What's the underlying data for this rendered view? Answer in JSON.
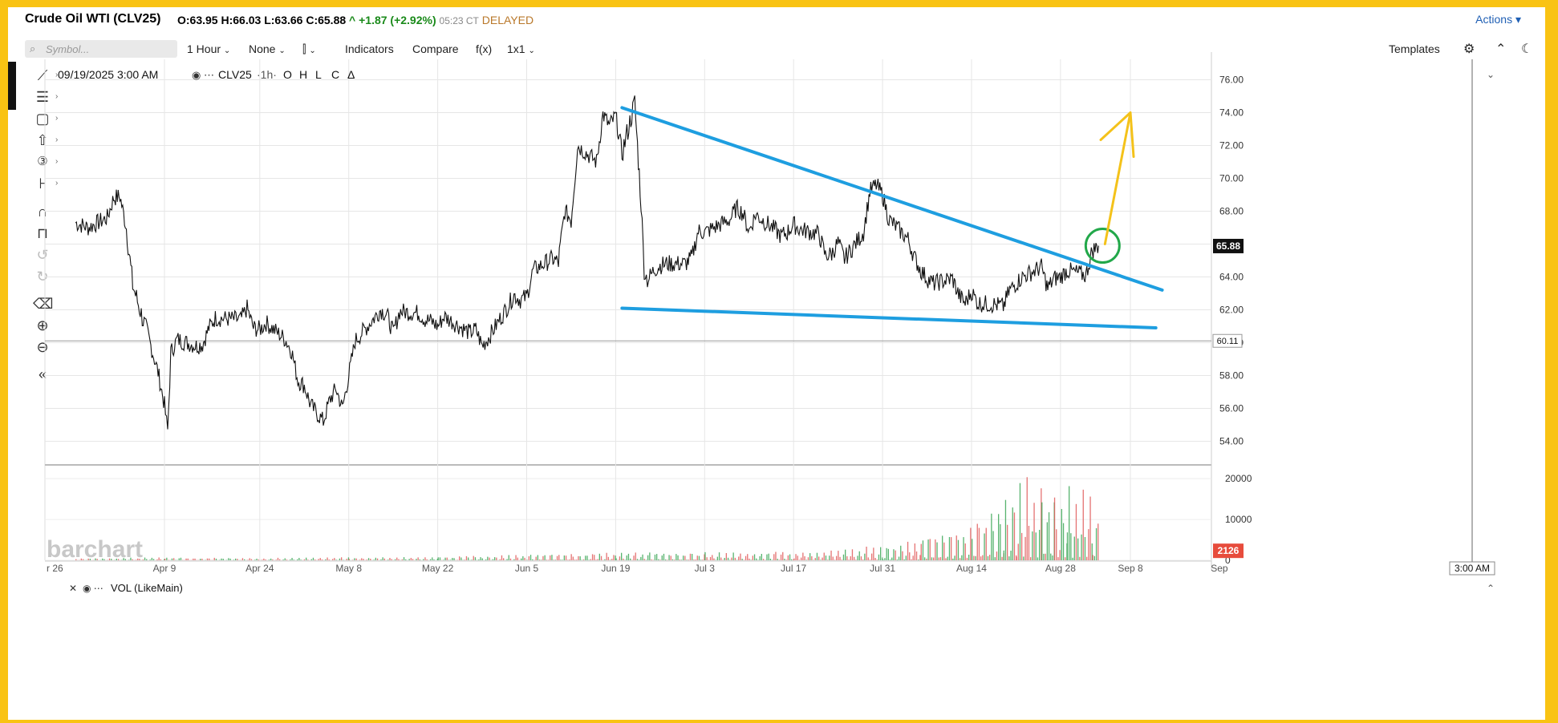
{
  "header": {
    "symbol_title": "Crude Oil WTI (CLV25)",
    "open": "O:63.95",
    "high": "H:66.03",
    "low": "L:63.66",
    "close": "C:65.88",
    "arrow": "^",
    "change": "+1.87 (+2.92%)",
    "time": "05:23 CT",
    "delayed": "DELAYED",
    "actions": "Actions"
  },
  "toolbar": {
    "search_placeholder": "Symbol...",
    "interval": "1 Hour",
    "aggregation": "None",
    "indicators": "Indicators",
    "compare": "Compare",
    "fx": "f(x)",
    "layout": "1x1",
    "templates": "Templates"
  },
  "legend": {
    "date": "09/19/2025 3:00 AM",
    "symbol": "CLV25",
    "period": "·1h·",
    "o": "O",
    "h": "H",
    "l": "L",
    "c": "C",
    "delta": "Δ",
    "volume": "VOL (LikeMain)"
  },
  "watermark": "barchart",
  "colors": {
    "trendline": "#1e9ee0",
    "arrow": "#f4c21a",
    "circle": "#22a84a",
    "price": "#111111",
    "vol_up": "#3aa655",
    "vol_down": "#e05a5a",
    "vol_badge": "#e74c3c"
  },
  "chart_data": [
    {
      "type": "line",
      "title": "",
      "x_ticks": [
        "r 26",
        "Apr 9",
        "Apr 24",
        "May 8",
        "May 22",
        "Jun 5",
        "Jun 19",
        "Jul 3",
        "Jul 17",
        "Jul 31",
        "Aug 14",
        "Aug 28",
        "Sep 8",
        "Sep"
      ],
      "y_ticks": [
        "76.00",
        "74.00",
        "72.00",
        "70.00",
        "68.00",
        "66.00",
        "64.00",
        "62.00",
        "60.00",
        "58.00",
        "56.00",
        "54.00"
      ],
      "ylim": [
        53.0,
        77.0
      ],
      "last_price": "65.88",
      "ref_price": "60.11",
      "crosshair_time": "3:00 AM",
      "series": [
        {
          "values": [
            [
              "2025-03-26",
              67.3
            ],
            [
              "2025-03-28",
              67.0
            ],
            [
              "2025-03-31",
              67.6
            ],
            [
              "2025-04-01",
              68.8
            ],
            [
              "2025-04-02",
              68.9
            ],
            [
              "2025-04-03",
              67.0
            ],
            [
              "2025-04-04",
              63.5
            ],
            [
              "2025-04-07",
              59.6
            ],
            [
              "2025-04-08",
              58.2
            ],
            [
              "2025-04-09",
              56.2
            ],
            [
              "2025-04-09T12",
              54.6
            ],
            [
              "2025-04-10",
              59.4
            ],
            [
              "2025-04-11",
              60.2
            ],
            [
              "2025-04-14",
              59.8
            ],
            [
              "2025-04-15",
              59.9
            ],
            [
              "2025-04-16",
              60.9
            ],
            [
              "2025-04-17",
              61.5
            ],
            [
              "2025-04-21",
              61.4
            ],
            [
              "2025-04-22",
              62.1
            ],
            [
              "2025-04-23",
              60.9
            ],
            [
              "2025-04-24",
              60.8
            ],
            [
              "2025-04-25",
              61.2
            ],
            [
              "2025-04-28",
              60.2
            ],
            [
              "2025-04-29",
              59.5
            ],
            [
              "2025-04-30",
              57.7
            ],
            [
              "2025-05-01",
              57.4
            ],
            [
              "2025-05-02",
              56.2
            ],
            [
              "2025-05-04",
              55.2
            ],
            [
              "2025-05-05",
              56.5
            ],
            [
              "2025-05-06",
              57.2
            ],
            [
              "2025-05-07",
              56.0
            ],
            [
              "2025-05-08",
              58.0
            ],
            [
              "2025-05-09",
              60.1
            ],
            [
              "2025-05-12",
              61.5
            ],
            [
              "2025-05-13",
              62.0
            ],
            [
              "2025-05-14",
              61.7
            ],
            [
              "2025-05-15",
              60.6
            ],
            [
              "2025-05-16",
              61.9
            ],
            [
              "2025-05-19",
              61.8
            ],
            [
              "2025-05-20",
              61.4
            ],
            [
              "2025-05-21",
              61.3
            ],
            [
              "2025-05-22",
              61.0
            ],
            [
              "2025-05-23",
              61.6
            ],
            [
              "2025-05-27",
              60.6
            ],
            [
              "2025-05-28",
              60.8
            ],
            [
              "2025-05-29",
              59.8
            ],
            [
              "2025-05-30",
              60.3
            ],
            [
              "2025-06-02",
              62.2
            ],
            [
              "2025-06-03",
              62.9
            ],
            [
              "2025-06-04",
              62.6
            ],
            [
              "2025-06-05",
              62.8
            ],
            [
              "2025-06-06",
              64.4
            ],
            [
              "2025-06-09",
              65.1
            ],
            [
              "2025-06-10",
              64.9
            ],
            [
              "2025-06-11",
              68.0
            ],
            [
              "2025-06-12",
              67.5
            ],
            [
              "2025-06-13",
              72.0
            ],
            [
              "2025-06-16",
              71.0
            ],
            [
              "2025-06-17",
              73.9
            ],
            [
              "2025-06-18",
              73.2
            ],
            [
              "2025-06-19",
              73.8
            ],
            [
              "2025-06-20",
              71.5
            ],
            [
              "2025-06-22",
              74.6
            ],
            [
              "2025-06-23",
              68.5
            ],
            [
              "2025-06-23T12",
              64.4
            ],
            [
              "2025-06-24",
              63.8
            ],
            [
              "2025-06-25",
              64.4
            ],
            [
              "2025-06-26",
              64.7
            ],
            [
              "2025-06-27",
              64.8
            ],
            [
              "2025-06-30",
              64.8
            ],
            [
              "2025-07-01",
              65.2
            ],
            [
              "2025-07-02",
              66.8
            ],
            [
              "2025-07-03",
              66.7
            ],
            [
              "2025-07-07",
              67.5
            ],
            [
              "2025-07-08",
              68.2
            ],
            [
              "2025-07-09",
              67.9
            ],
            [
              "2025-07-10",
              66.8
            ],
            [
              "2025-07-11",
              67.8
            ],
            [
              "2025-07-14",
              66.9
            ],
            [
              "2025-07-15",
              66.5
            ],
            [
              "2025-07-16",
              66.7
            ],
            [
              "2025-07-17",
              67.2
            ],
            [
              "2025-07-18",
              66.9
            ],
            [
              "2025-07-21",
              66.6
            ],
            [
              "2025-07-22",
              65.3
            ],
            [
              "2025-07-23",
              65.4
            ],
            [
              "2025-07-24",
              66.1
            ],
            [
              "2025-07-25",
              65.1
            ],
            [
              "2025-07-28",
              66.7
            ],
            [
              "2025-07-29",
              69.2
            ],
            [
              "2025-07-30",
              69.6
            ],
            [
              "2025-07-31",
              69.0
            ],
            [
              "2025-08-01",
              67.5
            ],
            [
              "2025-08-04",
              66.3
            ],
            [
              "2025-08-05",
              65.2
            ],
            [
              "2025-08-06",
              64.4
            ],
            [
              "2025-08-07",
              63.9
            ],
            [
              "2025-08-08",
              63.6
            ],
            [
              "2025-08-11",
              63.9
            ],
            [
              "2025-08-12",
              62.9
            ],
            [
              "2025-08-13",
              62.4
            ],
            [
              "2025-08-14",
              63.1
            ],
            [
              "2025-08-15",
              62.4
            ],
            [
              "2025-08-18",
              62.3
            ],
            [
              "2025-08-19",
              62.2
            ],
            [
              "2025-08-20",
              63.2
            ],
            [
              "2025-08-21",
              63.6
            ],
            [
              "2025-08-22",
              64.0
            ],
            [
              "2025-08-25",
              64.6
            ],
            [
              "2025-08-26",
              63.3
            ],
            [
              "2025-08-27",
              63.9
            ],
            [
              "2025-08-28",
              64.0
            ],
            [
              "2025-08-29",
              64.4
            ],
            [
              "2025-09-01",
              64.1
            ],
            [
              "2025-09-02",
              65.6
            ],
            [
              "2025-09-03",
              65.9
            ]
          ]
        }
      ],
      "annotations": {
        "upper_trendline": [
          [
            "2025-06-20",
            74.3
          ],
          [
            "2025-09-13",
            63.2
          ]
        ],
        "lower_trendline": [
          [
            "2025-06-20",
            62.1
          ],
          [
            "2025-09-12",
            60.9
          ]
        ],
        "breakout_circle": [
          "2025-09-04",
          65.9
        ],
        "target_arrow": [
          [
            "2025-09-04",
            66.0
          ],
          [
            "2025-09-08",
            74.0
          ]
        ]
      }
    },
    {
      "type": "bar",
      "title": "",
      "y_ticks": [
        "20000",
        "10000",
        "0"
      ],
      "ylim": [
        0,
        22000
      ],
      "last_volume": "2126",
      "series": [
        {
          "values": [
            [
              "2025-03-26",
              500
            ],
            [
              "2025-04-09",
              800
            ],
            [
              "2025-04-24",
              600
            ],
            [
              "2025-05-08",
              800
            ],
            [
              "2025-05-22",
              1000
            ],
            [
              "2025-06-05",
              1500
            ],
            [
              "2025-06-19",
              2200
            ],
            [
              "2025-07-03",
              2000
            ],
            [
              "2025-07-17",
              2500
            ],
            [
              "2025-07-31",
              4000
            ],
            [
              "2025-08-06",
              6000
            ],
            [
              "2025-08-14",
              10000
            ],
            [
              "2025-08-19",
              17000
            ],
            [
              "2025-08-21",
              21000
            ],
            [
              "2025-08-25",
              20500
            ],
            [
              "2025-08-27",
              19000
            ],
            [
              "2025-08-29",
              21000
            ],
            [
              "2025-09-02",
              18000
            ],
            [
              "2025-09-03",
              12500
            ]
          ]
        }
      ]
    }
  ]
}
